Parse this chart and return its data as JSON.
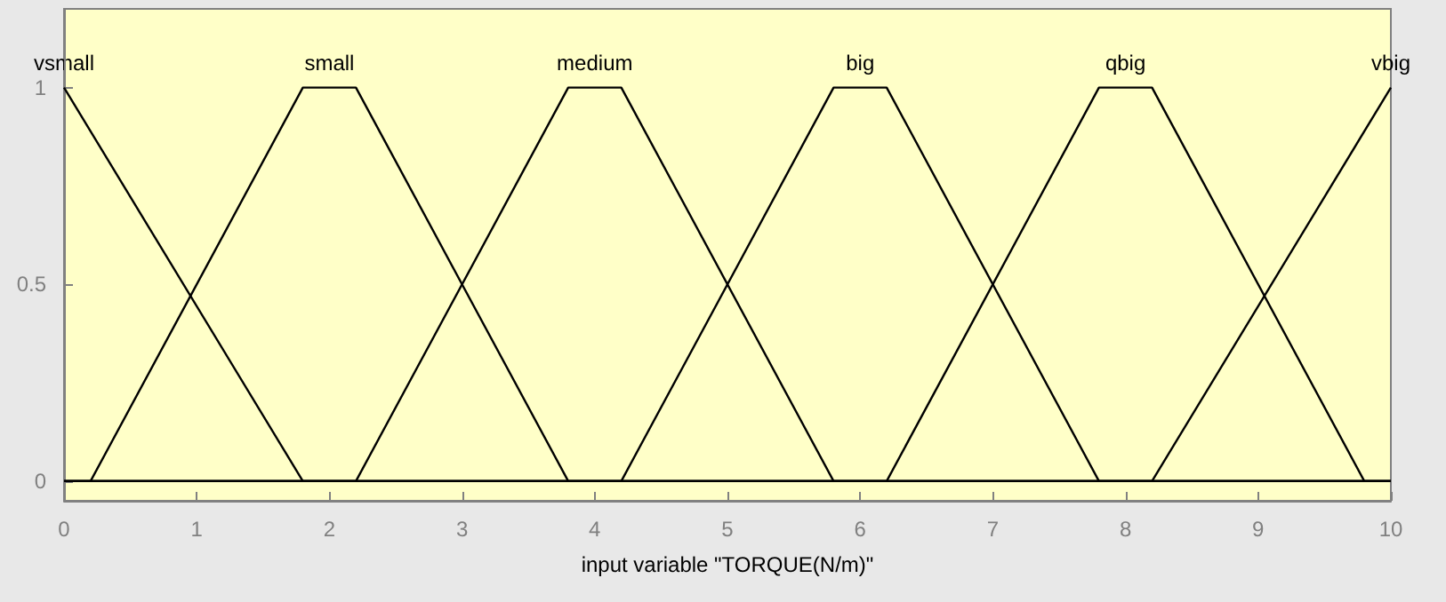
{
  "chart_data": {
    "type": "line",
    "xlabel": "input variable \"TORQUE(N/m)\"",
    "marker": "none",
    "line_style": "solid",
    "xlim": [
      0,
      10
    ],
    "xticks": [
      0,
      1,
      2,
      3,
      4,
      5,
      6,
      7,
      8,
      9,
      10
    ],
    "ylim": [
      -0.05,
      1.2
    ],
    "yticks": [
      0,
      0.5,
      1
    ],
    "series": [
      {
        "name": "vsmall",
        "color": "#000000",
        "x": [
          0,
          1.8,
          10
        ],
        "values": [
          1,
          0,
          0
        ]
      },
      {
        "name": "small",
        "color": "#000000",
        "x": [
          0,
          0.2,
          1.8,
          2.2,
          3.8,
          10
        ],
        "values": [
          0,
          0,
          1,
          1,
          0,
          0
        ]
      },
      {
        "name": "medium",
        "color": "#000000",
        "x": [
          0,
          2.2,
          3.8,
          4.2,
          5.8,
          10
        ],
        "values": [
          0,
          0,
          1,
          1,
          0,
          0
        ]
      },
      {
        "name": "big",
        "color": "#000000",
        "x": [
          0,
          4.2,
          5.8,
          6.2,
          7.8,
          10
        ],
        "values": [
          0,
          0,
          1,
          1,
          0,
          0
        ]
      },
      {
        "name": "qbig",
        "color": "#000000",
        "x": [
          0,
          6.2,
          7.8,
          8.2,
          9.8,
          10
        ],
        "values": [
          0,
          0,
          1,
          1,
          0,
          0
        ]
      },
      {
        "name": "vbig",
        "color": "#000000",
        "x": [
          0,
          8.2,
          10
        ],
        "values": [
          0,
          0,
          1
        ]
      }
    ]
  }
}
